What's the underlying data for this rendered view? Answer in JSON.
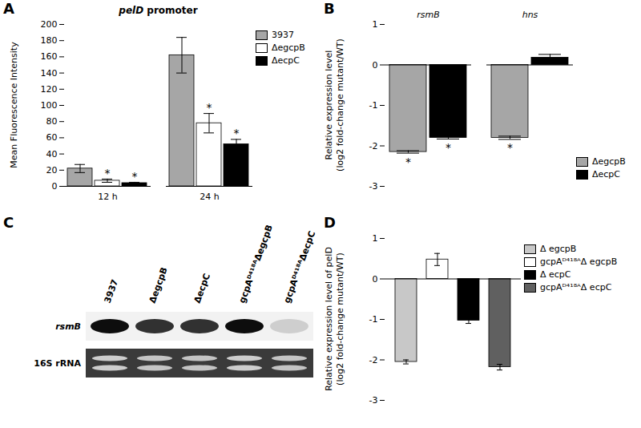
{
  "chart_data": [
    {
      "type": "bar",
      "panel": "A",
      "title": "pelD promoter",
      "y_label": "Mean Fluorescence Intensity",
      "categories": [
        "12 h",
        "24 h"
      ],
      "series": [
        {
          "name": "3937",
          "color": "#a6a6a6",
          "values": [
            22,
            162
          ],
          "errors": [
            5,
            22
          ]
        },
        {
          "name": "ΔegcpB",
          "color": "#ffffff",
          "values": [
            7,
            78
          ],
          "errors": [
            2,
            12
          ],
          "annotations": [
            "*",
            "*"
          ]
        },
        {
          "name": "ΔecpC",
          "color": "#000000",
          "values": [
            4,
            52
          ],
          "errors": [
            1,
            6
          ],
          "annotations": [
            "*",
            "*"
          ]
        }
      ],
      "ylim": [
        0,
        200
      ],
      "yticks": [
        0,
        20,
        40,
        60,
        80,
        100,
        120,
        140,
        160,
        180,
        200
      ],
      "legend": "top-right"
    },
    {
      "type": "bar",
      "panel": "B",
      "y_label": "Relative expression level\n(log2 fold-change mutant/WT)",
      "categories": [
        "rsmB",
        "hns"
      ],
      "series": [
        {
          "name": "ΔegcpB",
          "color": "#a6a6a6",
          "values": [
            -2.15,
            -1.8
          ],
          "errors": [
            0.03,
            0.04
          ],
          "annotations": [
            "*",
            "*"
          ]
        },
        {
          "name": "ΔecpC",
          "color": "#000000",
          "values": [
            -1.8,
            0.18
          ],
          "errors": [
            0.03,
            0.08
          ],
          "annotations": [
            "*",
            null
          ]
        }
      ],
      "ylim": [
        -3,
        1
      ],
      "yticks": [
        -3,
        -2,
        -1,
        0,
        1
      ],
      "legend": "bottom-right"
    },
    {
      "type": "gel",
      "panel": "C",
      "lanes": [
        "3937",
        "ΔegcpB",
        "ΔecpC",
        "gcpAᴰ⁴¹⁸ᴬΔegcpB",
        "gcpAᴰ⁴¹⁸ᴬΔecpC"
      ],
      "series": [
        {
          "name": "rsmB",
          "values": [
            0.95,
            0.8,
            0.8,
            0.95,
            0.15
          ]
        },
        {
          "name": "16S rRNA",
          "values": [
            0.75,
            0.7,
            0.7,
            0.75,
            0.7
          ]
        }
      ]
    },
    {
      "type": "bar",
      "panel": "D",
      "y_label": "Relative expression level of pelD\n(log2 fold-change mutant/WT)",
      "categories": [
        "Δ egcpB",
        "gcpAᴰ⁴¹⁸ᴬΔ egcpB",
        "Δ ecpC",
        "gcpAᴰ⁴¹⁸ᴬΔ ecpC"
      ],
      "values": [
        -2.05,
        0.48,
        -1.03,
        -2.18
      ],
      "errors": [
        0.05,
        0.15,
        0.07,
        0.07
      ],
      "colors": [
        "#c8c8c8",
        "#ffffff",
        "#000000",
        "#606060"
      ],
      "ylim": [
        -3,
        1
      ],
      "yticks": [
        -3,
        -2,
        -1,
        0,
        1
      ],
      "tick_labels": "y",
      "legend": "top-right"
    }
  ]
}
